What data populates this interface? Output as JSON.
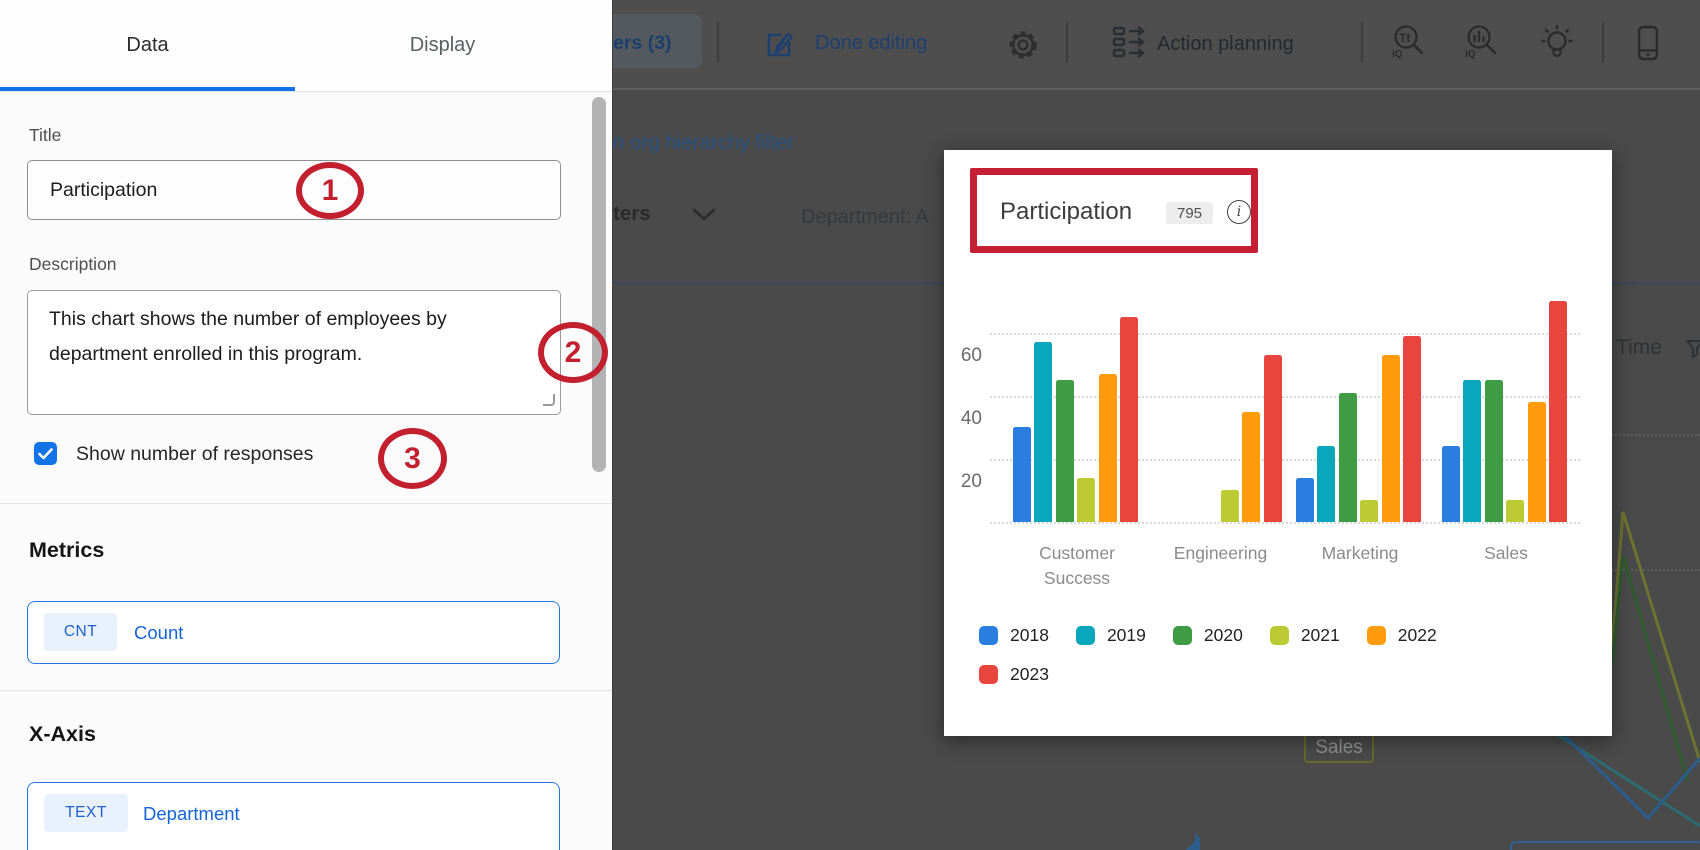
{
  "toolbar": {
    "viewers": "ers (3)",
    "done_editing": "Done editing",
    "action_planning": "Action planning"
  },
  "panel": {
    "tab_data": "Data",
    "tab_display": "Display",
    "title_label": "Title",
    "title_value": "Participation",
    "description_label": "Description",
    "description_value": "This chart shows the number of employees by department enrolled in this program.",
    "checkbox_label": "Show number of responses",
    "metrics_heading": "Metrics",
    "metric_badge": "CNT",
    "metric_name": "Count",
    "xaxis_heading": "X-Axis",
    "xaxis_badge": "TEXT",
    "xaxis_name": "Department"
  },
  "annotations": {
    "one": "1",
    "two": "2",
    "three": "3",
    "accent_color": "#c2202f"
  },
  "background": {
    "org_link": "n org hierarchy filter",
    "filters": "ters",
    "department": "Department: A",
    "time": "Time",
    "sales_tag": "Sales"
  },
  "card": {
    "title": "Participation",
    "responses": "795"
  },
  "chart_data": {
    "type": "bar",
    "title": "Participation",
    "total_responses": 795,
    "categories": [
      "Customer Success",
      "Engineering",
      "Marketing",
      "Sales"
    ],
    "series": [
      {
        "name": "2018",
        "color": "#2b7de0",
        "values": [
          30,
          0,
          14,
          24
        ]
      },
      {
        "name": "2019",
        "color": "#0aa7bc",
        "values": [
          57,
          0,
          24,
          45
        ]
      },
      {
        "name": "2020",
        "color": "#3f9c44",
        "values": [
          45,
          0,
          41,
          45
        ]
      },
      {
        "name": "2021",
        "color": "#bccb33",
        "values": [
          14,
          10,
          7,
          7
        ]
      },
      {
        "name": "2022",
        "color": "#ff9c0d",
        "values": [
          47,
          35,
          53,
          38
        ]
      },
      {
        "name": "2023",
        "color": "#e8453f",
        "values": [
          65,
          53,
          59,
          70
        ]
      }
    ],
    "yticks": [
      20,
      40,
      60
    ],
    "ylim": [
      0,
      72
    ],
    "grid": "dotted horizontal",
    "legend_position": "bottom"
  }
}
